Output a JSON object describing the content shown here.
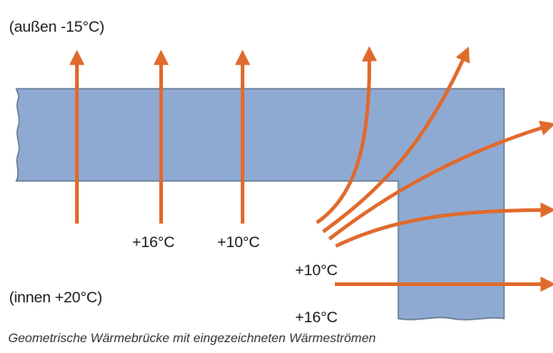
{
  "labels": {
    "outside": "(außen -15°C)",
    "inside": "(innen +20°C)",
    "temp_16_left": "+16°C",
    "temp_10_left": "+10°C",
    "temp_10_corner": "+10°C",
    "temp_16_corner": "+16°C"
  },
  "caption": "Geometrische Wärmebrücke mit eingezeichneten Wärmeströmen",
  "colors": {
    "wall": "#8eaad3",
    "wall_border": "#5b6e88",
    "arrow": "#e06a2c",
    "text": "#1a1a1a"
  }
}
